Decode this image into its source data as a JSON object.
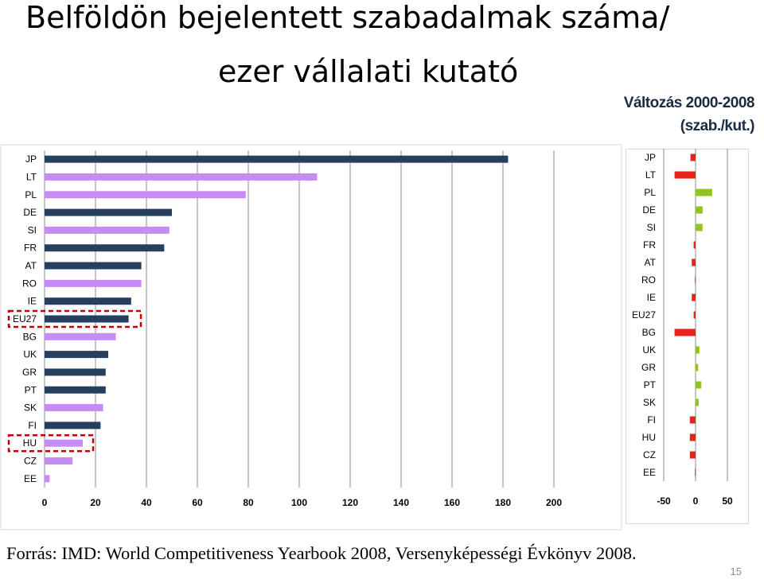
{
  "title": {
    "line1": "Belföldön bejelentett szabadalmak száma/",
    "line2": "ezer vállalati kutató"
  },
  "change_title": {
    "line1": "Változás 2000-2008",
    "line2": "(szab./kut.)"
  },
  "source": "Forrás: IMD: World Competitiveness Yearbook 2008, Versenyképességi Évkönyv 2008.",
  "page_number": "15",
  "colors": {
    "dark_bar": "#243f60",
    "light_bar": "#c78cf2",
    "negative": "#e8231c",
    "positive": "#92c31f",
    "highlight_box": "#c00000"
  },
  "highlighted": [
    "EU27",
    "HU"
  ],
  "chart_data": [
    {
      "type": "bar",
      "orientation": "horizontal",
      "categories": [
        "JP",
        "LT",
        "PL",
        "DE",
        "SI",
        "FR",
        "AT",
        "RO",
        "IE",
        "EU27",
        "BG",
        "UK",
        "GR",
        "PT",
        "SK",
        "FI",
        "HU",
        "CZ",
        "EE"
      ],
      "values": [
        182,
        107,
        79,
        50,
        49,
        47,
        38,
        38,
        34,
        33,
        28,
        25,
        24,
        24,
        23,
        22,
        15,
        11,
        2
      ],
      "bar_colors": [
        "dark",
        "light",
        "light",
        "dark",
        "light",
        "dark",
        "dark",
        "light",
        "dark",
        "dark",
        "light",
        "dark",
        "dark",
        "dark",
        "light",
        "dark",
        "light",
        "light",
        "light"
      ],
      "xlim": [
        0,
        200
      ],
      "xticks": [
        "0",
        "20",
        "40",
        "60",
        "80",
        "100",
        "120",
        "140",
        "160",
        "180",
        "200"
      ],
      "grid": "vertical"
    },
    {
      "type": "bar",
      "orientation": "horizontal",
      "title": "Változás 2000-2008 (szab./kut.)",
      "categories": [
        "JP",
        "LT",
        "PL",
        "DE",
        "SI",
        "FR",
        "AT",
        "RO",
        "IE",
        "EU27",
        "BG",
        "UK",
        "GR",
        "PT",
        "SK",
        "FI",
        "HU",
        "CZ",
        "EE"
      ],
      "values": [
        -8,
        -33,
        26,
        11,
        11,
        -3,
        -6,
        -1,
        -6,
        -3,
        -33,
        6,
        4,
        9,
        5,
        -9,
        -9,
        -9,
        -1
      ],
      "xlim": [
        -50,
        50
      ],
      "xticks": [
        "-50",
        "0",
        "50"
      ],
      "grid": "vertical"
    }
  ]
}
